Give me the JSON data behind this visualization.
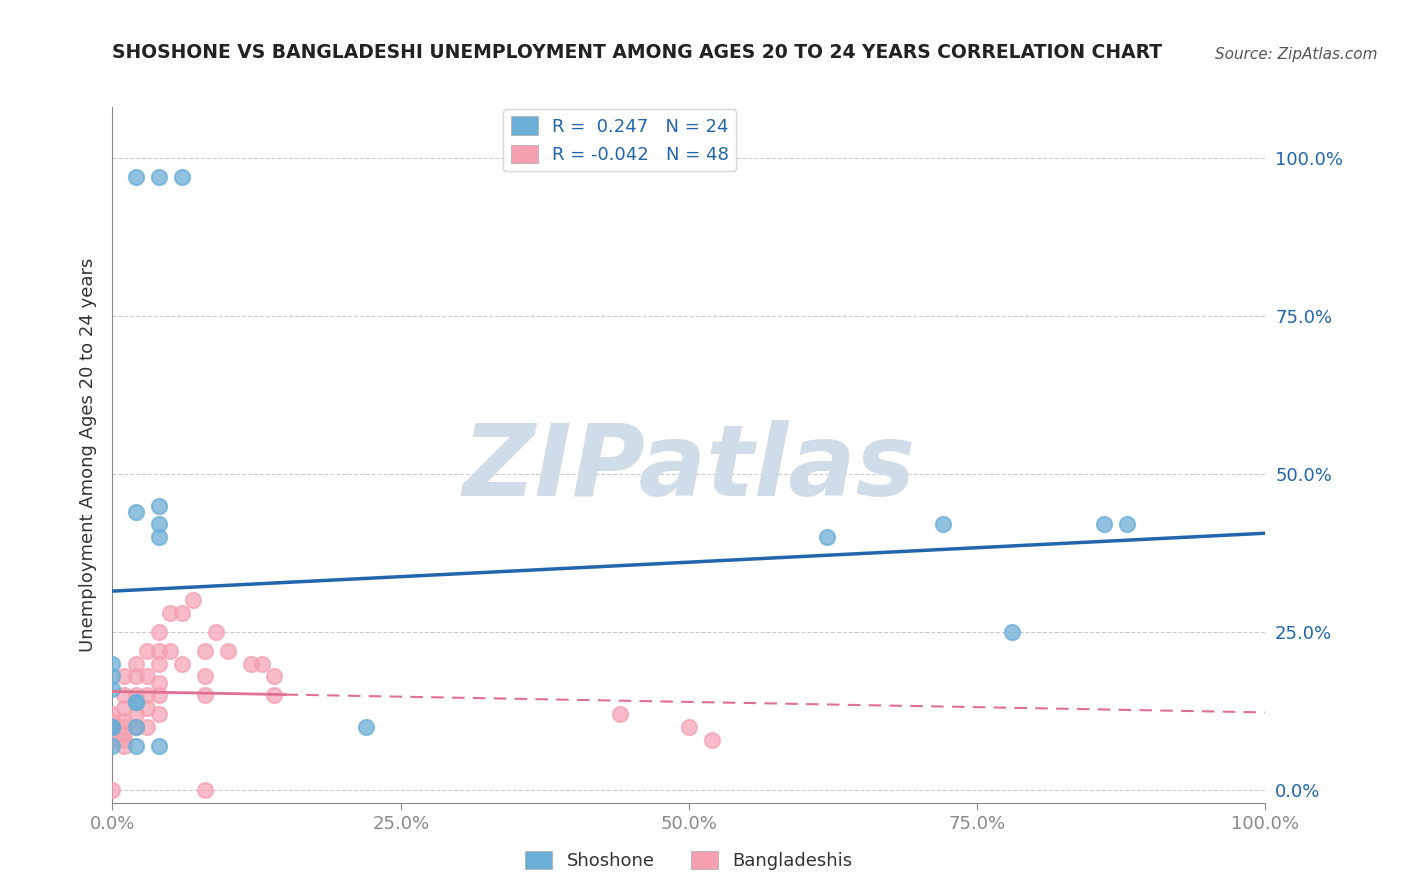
{
  "title": "SHOSHONE VS BANGLADESHI UNEMPLOYMENT AMONG AGES 20 TO 24 YEARS CORRELATION CHART",
  "source": "Source: ZipAtlas.com",
  "ylabel": "Unemployment Among Ages 20 to 24 years",
  "xlim": [
    0.0,
    1.0
  ],
  "ylim": [
    -0.02,
    1.08
  ],
  "xticks": [
    0.0,
    0.25,
    0.5,
    0.75,
    1.0
  ],
  "yticks": [
    0.0,
    0.25,
    0.5,
    0.75,
    1.0
  ],
  "right_ytick_labels": [
    "0.0%",
    "25.0%",
    "50.0%",
    "75.0%",
    "100.0%"
  ],
  "bottom_xtick_labels": [
    "0.0%",
    "25.0%",
    "50.0%",
    "75.0%",
    "100.0%"
  ],
  "shoshone_color": "#6baed6",
  "bangladeshi_color": "#f4a0b0",
  "shoshone_R": 0.247,
  "shoshone_N": 24,
  "bangladeshi_R": -0.042,
  "bangladeshi_N": 48,
  "shoshone_line_color": "#2166ac",
  "bangladeshi_line_color": "#e07090",
  "watermark": "ZIPatlas",
  "watermark_color": "#d0dce8",
  "background_color": "#ffffff",
  "grid_color": "#cccccc",
  "shoshone_x": [
    0.02,
    0.04,
    0.06,
    0.04,
    0.02,
    0.04,
    0.04,
    0.0,
    0.0,
    0.0,
    0.02,
    0.02,
    0.02,
    0.0,
    0.0,
    0.22,
    0.62,
    0.72,
    0.78,
    0.86,
    0.88,
    0.02,
    0.04,
    0.0
  ],
  "shoshone_y": [
    0.97,
    0.97,
    0.97,
    0.45,
    0.44,
    0.42,
    0.4,
    0.2,
    0.18,
    0.16,
    0.14,
    0.14,
    0.1,
    0.1,
    0.1,
    0.1,
    0.4,
    0.42,
    0.25,
    0.42,
    0.42,
    0.07,
    0.07,
    0.07
  ],
  "bangladeshi_x": [
    0.0,
    0.0,
    0.0,
    0.0,
    0.0,
    0.01,
    0.01,
    0.01,
    0.01,
    0.01,
    0.01,
    0.01,
    0.01,
    0.02,
    0.02,
    0.02,
    0.02,
    0.02,
    0.03,
    0.03,
    0.03,
    0.03,
    0.03,
    0.04,
    0.04,
    0.04,
    0.04,
    0.04,
    0.04,
    0.05,
    0.05,
    0.06,
    0.06,
    0.07,
    0.08,
    0.08,
    0.08,
    0.09,
    0.1,
    0.12,
    0.13,
    0.14,
    0.14,
    0.44,
    0.5,
    0.52,
    0.0,
    0.08
  ],
  "bangladeshi_y": [
    0.12,
    0.11,
    0.1,
    0.09,
    0.08,
    0.18,
    0.15,
    0.13,
    0.11,
    0.1,
    0.09,
    0.08,
    0.07,
    0.2,
    0.18,
    0.15,
    0.12,
    0.1,
    0.22,
    0.18,
    0.15,
    0.13,
    0.1,
    0.25,
    0.22,
    0.2,
    0.17,
    0.15,
    0.12,
    0.28,
    0.22,
    0.28,
    0.2,
    0.3,
    0.22,
    0.18,
    0.15,
    0.25,
    0.22,
    0.2,
    0.2,
    0.18,
    0.15,
    0.12,
    0.1,
    0.08,
    0.0,
    0.0
  ]
}
